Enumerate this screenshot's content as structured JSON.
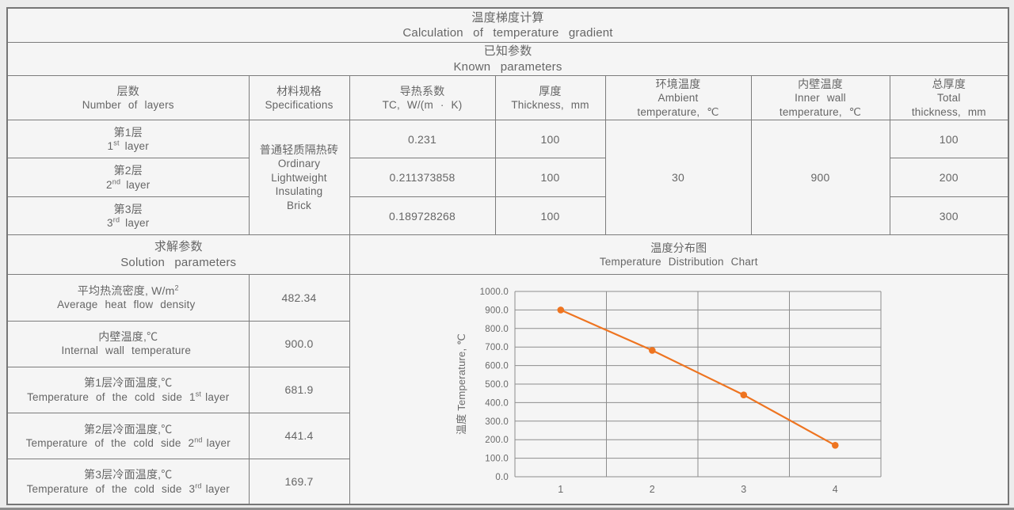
{
  "page": {
    "title_zh": "温度梯度计算",
    "title_en": "Calculation of temperature gradient",
    "known_zh": "已知参数",
    "known_en": "Known parameters"
  },
  "columns": [
    {
      "zh": "层数",
      "en": "Number of layers"
    },
    {
      "zh": "材料规格",
      "en": "Specifications"
    },
    {
      "zh": "导热系数",
      "en": "TC, W/(m · K)"
    },
    {
      "zh": "厚度",
      "en": "Thickness, mm"
    },
    {
      "zh": "环境温度",
      "en": "Ambient\ntemperature, ℃"
    },
    {
      "zh": "内壁温度",
      "en": "Inner wall\ntemperature, ℃"
    },
    {
      "zh": "总厚度",
      "en": "Total\nthickness, mm"
    }
  ],
  "material": {
    "zh": "普通轻质隔热砖",
    "en": "Ordinary\nLightweight\nInsulating\nBrick"
  },
  "known_values": {
    "ambient_temperature": "30",
    "inner_wall_temperature": "900"
  },
  "layers": [
    {
      "zh": "第1层",
      "en_num": "1",
      "en_sup": "st",
      "en_rest": "layer",
      "tc": "0.231",
      "thickness": "100",
      "total": "100"
    },
    {
      "zh": "第2层",
      "en_num": "2",
      "en_sup": "nd",
      "en_rest": "layer",
      "tc": "0.211373858",
      "thickness": "100",
      "total": "200"
    },
    {
      "zh": "第3层",
      "en_num": "3",
      "en_sup": "rd",
      "en_rest": "layer",
      "tc": "0.189728268",
      "thickness": "100",
      "total": "300"
    }
  ],
  "solution": {
    "header_zh": "求解参数",
    "header_en": "Solution parameters",
    "rows": [
      {
        "zh": "平均热流密度, W/m",
        "zh_sup": "2",
        "en": "Average heat flow density",
        "value": "482.34"
      },
      {
        "zh": "内壁温度,℃",
        "en": "Internal wall temperature",
        "value": "900.0"
      },
      {
        "zh": "第1层冷面温度,℃",
        "en": "Temperature of the cold side 1",
        "en_sup": "st",
        "en_post": "layer",
        "value": "681.9"
      },
      {
        "zh": "第2层冷面温度,℃",
        "en": "Temperature of the cold side 2",
        "en_sup": "nd",
        "en_post": "layer",
        "value": "441.4"
      },
      {
        "zh": "第3层冷面温度,℃",
        "en": "Temperature of the cold side 3",
        "en_sup": "rd",
        "en_post": "layer",
        "value": "169.7"
      }
    ]
  },
  "chart": {
    "title_zh": "温度分布图",
    "title_en": "Temperature Distribution Chart"
  },
  "chart_data": {
    "type": "line",
    "title": "温度分布图 Temperature Distribution Chart",
    "categories": [
      "1",
      "2",
      "3",
      "4"
    ],
    "values": [
      900.0,
      681.9,
      441.4,
      169.7
    ],
    "xlabel": "",
    "ylabel": "温度 Temperature, ℃",
    "ylim": [
      0,
      1000
    ],
    "ytick_step": 100,
    "grid": true,
    "legend": "none",
    "line_color": "#EE7420",
    "grid_color": "#8d8d8d",
    "text_color": "#6a6a6a",
    "marker": "circle"
  }
}
